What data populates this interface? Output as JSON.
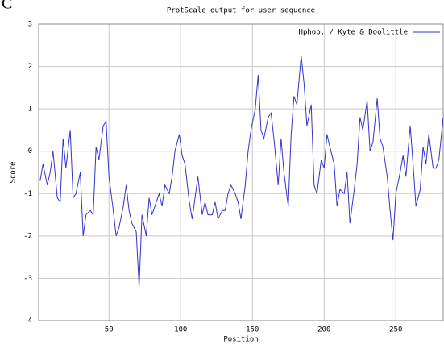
{
  "panel_label": "C",
  "chart_data": {
    "type": "line",
    "title": "ProtScale output for user sequence",
    "x_label": "Position",
    "y_label": "Score",
    "x": [
      2,
      4,
      7,
      9,
      11,
      14,
      16,
      18,
      20,
      23,
      25,
      27,
      30,
      32,
      34,
      37,
      39,
      41,
      43,
      46,
      48,
      50,
      53,
      55,
      57,
      60,
      62,
      64,
      66,
      69,
      71,
      73,
      76,
      78,
      80,
      83,
      85,
      87,
      89,
      92,
      94,
      96,
      99,
      101,
      103,
      106,
      108,
      110,
      112,
      115,
      117,
      119,
      122,
      124,
      126,
      129,
      131,
      133,
      135,
      138,
      140,
      142,
      145,
      147,
      149,
      152,
      154,
      156,
      158,
      161,
      163,
      165,
      168,
      170,
      172,
      175,
      177,
      179,
      181,
      184,
      186,
      188,
      191,
      193,
      195,
      198,
      200,
      202,
      204,
      207,
      209,
      211,
      214,
      216,
      218,
      221,
      223,
      225,
      227,
      230,
      232,
      234,
      237,
      239,
      241,
      244,
      246,
      248,
      250,
      253,
      255,
      257,
      260,
      262,
      264,
      267,
      269,
      271,
      273,
      276,
      278,
      280,
      283
    ],
    "series": [
      {
        "name": "Hphob. / Kyte & Doolittle",
        "color": "#3333cc",
        "values": [
          -0.7,
          -0.3,
          -0.8,
          -0.5,
          0,
          -1.1,
          -1.2,
          0.3,
          -0.4,
          0.5,
          -1.1,
          -1.0,
          -0.5,
          -2.0,
          -1.5,
          -1.4,
          -1.5,
          0.1,
          -0.2,
          0.6,
          0.7,
          -0.6,
          -1.4,
          -2.0,
          -1.8,
          -1.3,
          -0.8,
          -1.4,
          -1.7,
          -1.9,
          -3.2,
          -1.5,
          -2.0,
          -1.1,
          -1.5,
          -1.2,
          -1.0,
          -1.3,
          -0.8,
          -1.0,
          -0.6,
          0.0,
          0.4,
          -0.1,
          -0.3,
          -1.2,
          -1.6,
          -1.1,
          -0.6,
          -1.5,
          -1.2,
          -1.5,
          -1.5,
          -1.2,
          -1.6,
          -1.4,
          -1.4,
          -1.0,
          -0.8,
          -1.0,
          -1.2,
          -1.6,
          -0.8,
          0.0,
          0.5,
          1.0,
          1.8,
          0.5,
          0.3,
          0.8,
          0.9,
          0.3,
          -0.8,
          0.3,
          -0.5,
          -1.3,
          0.4,
          1.3,
          1.1,
          2.25,
          1.6,
          0.6,
          1.1,
          -0.8,
          -1.0,
          -0.2,
          -0.4,
          0.4,
          0.1,
          -0.3,
          -1.3,
          -0.9,
          -1.0,
          -0.5,
          -1.7,
          -0.9,
          -0.3,
          0.8,
          0.5,
          1.2,
          0.0,
          0.2,
          1.25,
          0.3,
          0.1,
          -0.6,
          -1.4,
          -2.1,
          -1.0,
          -0.5,
          -0.1,
          -0.6,
          0.6,
          -0.3,
          -1.3,
          -0.9,
          0.1,
          -0.3,
          0.4,
          -0.4,
          -0.4,
          -0.2,
          0.8
        ]
      }
    ],
    "xlim": [
      1,
      283
    ],
    "xticks": [
      50,
      100,
      150,
      200,
      250
    ],
    "ylim": [
      -4,
      3
    ],
    "yticks": [
      -4,
      -3,
      -2,
      -1,
      0,
      1,
      2,
      3
    ],
    "grid": true,
    "legend": "top-right"
  }
}
